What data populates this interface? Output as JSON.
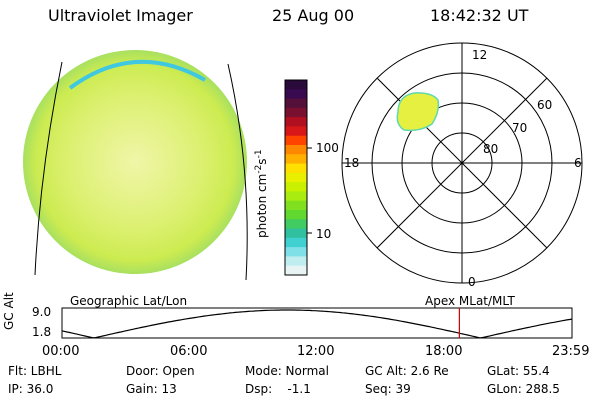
{
  "header": {
    "instrument": "Ultraviolet Imager",
    "date": "25 Aug 00",
    "time": "18:42:32 UT"
  },
  "colorbar": {
    "label": "photon cm",
    "label_sup1": "-2",
    "label_mid": "s",
    "label_sup2": "-1",
    "ticks": [
      "100",
      "10"
    ],
    "colors": [
      "#2a0a3a",
      "#3a0a50",
      "#55103a",
      "#7a1030",
      "#b01020",
      "#d81818",
      "#ff4400",
      "#ff8800",
      "#ffb000",
      "#ffe000",
      "#e8f000",
      "#c8f000",
      "#a8ec10",
      "#80e020",
      "#60d830",
      "#40cc60",
      "#30c0a0",
      "#40d0d0",
      "#80e0e8",
      "#c0eef0",
      "#e8f4f4"
    ]
  },
  "polar": {
    "labels": [
      "12",
      "60",
      "70",
      "80",
      "18",
      "6",
      "0"
    ]
  },
  "timeline": {
    "left_title": "Geographic Lat/Lon",
    "right_title": "Apex MLat/MLT",
    "y_axis_label": "GC Alt",
    "y_ticks": [
      "9.0",
      "1.8"
    ],
    "x_ticks": [
      "00:00",
      "06:00",
      "12:00",
      "18:00",
      "23:59"
    ],
    "current_time_hours": 18.7
  },
  "footer": {
    "filter": "Flt: LBHL",
    "ip": "IP: 36.0",
    "door": "Door: Open",
    "gain": "Gain: 13",
    "mode": "Mode: Normal",
    "dsp": "Dsp:    -1.1",
    "gc_alt": "GC Alt: 2.6 Re",
    "seq": "Seq: 39",
    "glat": "GLat: 55.4",
    "glon": "GLon: 288.5"
  },
  "colors": {
    "disk": "#d8f060",
    "disk_edge": "#40c8e0",
    "oval": "#e0f040",
    "marker": "#cc0000"
  }
}
